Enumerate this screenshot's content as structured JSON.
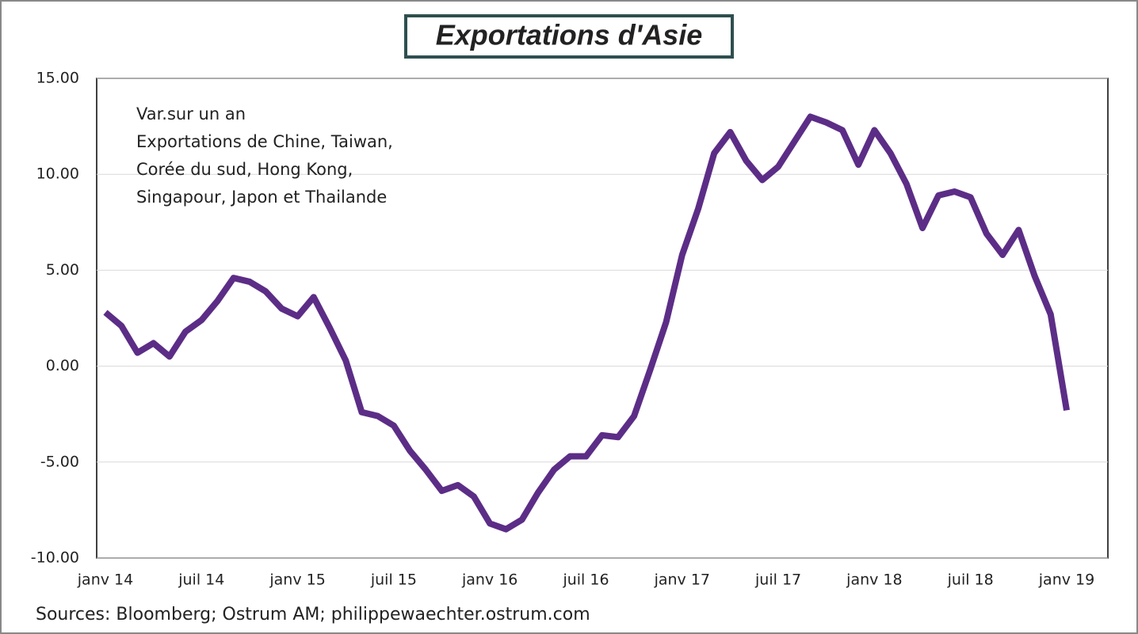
{
  "chart_data": {
    "type": "line",
    "title": "Exportations d'Asie",
    "annotation": [
      "Var.sur un an",
      "Exportations de Chine, Taiwan,",
      "Corée du sud, Hong Kong,",
      "Singapour, Japon et Thailande"
    ],
    "source": "Sources: Bloomberg; Ostrum AM; philippewaechter.ostrum.com",
    "categories": [
      "janv 14",
      null,
      null,
      null,
      null,
      null,
      "juil 14",
      null,
      null,
      null,
      null,
      null,
      "janv 15",
      null,
      null,
      null,
      null,
      null,
      "juil 15",
      null,
      null,
      null,
      null,
      null,
      "janv 16",
      null,
      null,
      null,
      null,
      null,
      "juil 16",
      null,
      null,
      null,
      null,
      null,
      "janv 17",
      null,
      null,
      null,
      null,
      null,
      "juil 17",
      null,
      null,
      null,
      null,
      null,
      "janv 18",
      null,
      null,
      null,
      null,
      null,
      "juil 18",
      null,
      null,
      null,
      null,
      null,
      "janv 19"
    ],
    "series": [
      {
        "name": "Exportations d'Asie",
        "color": "#5c2d86",
        "values": [
          2.8,
          2.1,
          0.7,
          1.2,
          0.5,
          1.8,
          2.4,
          3.4,
          4.6,
          4.4,
          3.9,
          3.0,
          2.6,
          3.6,
          2.0,
          0.3,
          -2.4,
          -2.6,
          -3.1,
          -4.4,
          -5.4,
          -6.5,
          -6.2,
          -6.8,
          -8.2,
          -8.5,
          -8.0,
          -6.6,
          -5.4,
          -4.7,
          -4.7,
          -3.6,
          -3.7,
          -2.6,
          -0.2,
          2.3,
          5.8,
          8.2,
          11.1,
          12.2,
          10.7,
          9.7,
          10.4,
          11.7,
          13.0,
          12.7,
          12.3,
          10.5,
          12.3,
          11.1,
          9.5,
          7.2,
          8.9,
          9.1,
          8.8,
          6.9,
          5.8,
          7.1,
          4.7,
          2.7,
          -2.3
        ]
      }
    ],
    "ylim": [
      -10,
      15
    ],
    "yticks": [
      {
        "value": -10,
        "label": "-10.00"
      },
      {
        "value": -5,
        "label": "-5.00"
      },
      {
        "value": 0,
        "label": "0.00"
      },
      {
        "value": 5,
        "label": "5.00"
      },
      {
        "value": 10,
        "label": "10.00"
      },
      {
        "value": 15,
        "label": "15.00"
      }
    ],
    "grid": true
  }
}
